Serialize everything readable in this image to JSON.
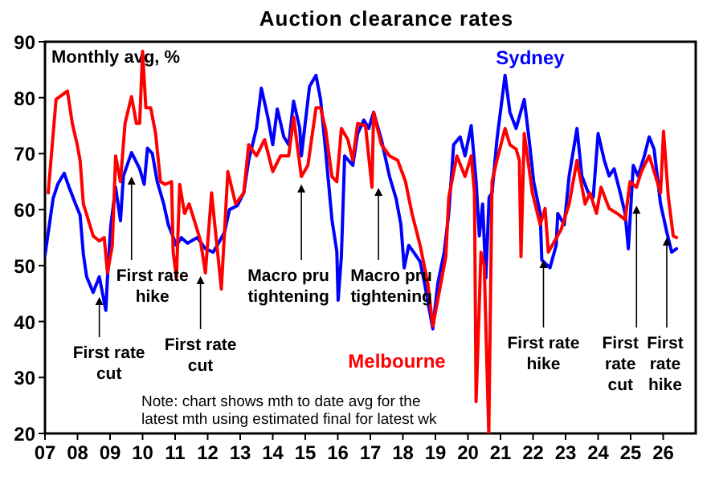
{
  "chart_data": {
    "type": "line",
    "title": "Auction clearance rates",
    "ylabel": "Monthly avg, %",
    "xlim": [
      2007,
      2027
    ],
    "ylim": [
      20,
      90
    ],
    "xticks": [
      {
        "value": 2007,
        "label": "07"
      },
      {
        "value": 2008,
        "label": "08"
      },
      {
        "value": 2009,
        "label": "09"
      },
      {
        "value": 2010,
        "label": "10"
      },
      {
        "value": 2011,
        "label": "11"
      },
      {
        "value": 2012,
        "label": "12"
      },
      {
        "value": 2013,
        "label": "13"
      },
      {
        "value": 2014,
        "label": "14"
      },
      {
        "value": 2015,
        "label": "15"
      },
      {
        "value": 2016,
        "label": "16"
      },
      {
        "value": 2017,
        "label": "17"
      },
      {
        "value": 2018,
        "label": "18"
      },
      {
        "value": 2019,
        "label": "19"
      },
      {
        "value": 2020,
        "label": "20"
      },
      {
        "value": 2021,
        "label": "21"
      },
      {
        "value": 2022,
        "label": "22"
      },
      {
        "value": 2023,
        "label": "23"
      },
      {
        "value": 2024,
        "label": "24"
      },
      {
        "value": 2025,
        "label": "25"
      },
      {
        "value": 2026,
        "label": "26"
      }
    ],
    "yticks": [
      20,
      30,
      40,
      50,
      60,
      70,
      80,
      90
    ],
    "grid": false,
    "series": [
      {
        "name": "Sydney",
        "color": "#0000ff",
        "x": [
          2007.0,
          2007.25,
          2007.39,
          2007.59,
          2007.74,
          2007.94,
          2008.08,
          2008.18,
          2008.28,
          2008.48,
          2008.67,
          2008.87,
          2008.92,
          2009.02,
          2009.17,
          2009.32,
          2009.41,
          2009.66,
          2009.91,
          2010.05,
          2010.15,
          2010.3,
          2010.45,
          2010.65,
          2010.79,
          2011.04,
          2011.19,
          2011.38,
          2011.68,
          2011.93,
          2012.17,
          2012.37,
          2012.52,
          2012.67,
          2012.91,
          2013.11,
          2013.26,
          2013.5,
          2013.65,
          2013.85,
          2014.0,
          2014.14,
          2014.34,
          2014.49,
          2014.64,
          2014.83,
          2014.88,
          2015.13,
          2015.33,
          2015.47,
          2015.62,
          2015.82,
          2015.97,
          2016.01,
          2016.11,
          2016.21,
          2016.46,
          2016.61,
          2016.8,
          2016.95,
          2017.1,
          2017.34,
          2017.59,
          2017.79,
          2017.94,
          2018.04,
          2018.18,
          2018.33,
          2018.53,
          2018.67,
          2018.92,
          2019.07,
          2019.27,
          2019.41,
          2019.56,
          2019.76,
          2019.91,
          2020.1,
          2020.25,
          2020.35,
          2020.45,
          2020.55,
          2020.65,
          2020.74,
          2020.89,
          2021.14,
          2021.29,
          2021.48,
          2021.73,
          2021.88,
          2022.02,
          2022.22,
          2022.27,
          2022.52,
          2022.71,
          2022.76,
          2022.96,
          2023.11,
          2023.35,
          2023.5,
          2023.7,
          2023.85,
          2024.0,
          2024.19,
          2024.34,
          2024.49,
          2024.68,
          2024.83,
          2024.93,
          2025.08,
          2025.23,
          2025.42,
          2025.57,
          2025.72,
          2025.92,
          2026.11,
          2026.26,
          2026.41
        ],
        "values": [
          51.8,
          62,
          64.5,
          66.5,
          64,
          61,
          59,
          52,
          48,
          45.2,
          48,
          42,
          47.8,
          57,
          64,
          58,
          66,
          70.2,
          67.3,
          64.5,
          71,
          70,
          65,
          61,
          57.3,
          53.6,
          55,
          54,
          55,
          53,
          52.4,
          54.4,
          56,
          60,
          60.7,
          63,
          68.8,
          74.5,
          81.7,
          76.5,
          71.6,
          78,
          73,
          71.6,
          79.4,
          74.5,
          69.6,
          82,
          84,
          79.7,
          70.8,
          58.2,
          52.5,
          43.8,
          51.6,
          69.6,
          67.9,
          73.6,
          76,
          74.5,
          77.4,
          72.5,
          65.9,
          62,
          57.3,
          49.6,
          53.6,
          52.4,
          50.7,
          46.7,
          38.7,
          46.7,
          52.4,
          59.3,
          71.6,
          73,
          69.6,
          75,
          65,
          55.3,
          61,
          47.8,
          62.2,
          63,
          72.5,
          84,
          77.4,
          74.5,
          79.7,
          72.5,
          65,
          59.3,
          51,
          49.6,
          53.6,
          59.3,
          57.3,
          66,
          74.5,
          66,
          63,
          62.2,
          73.6,
          68.8,
          66,
          67.3,
          63,
          59.3,
          53,
          67.9,
          66,
          69.6,
          73,
          70.8,
          61,
          56,
          52.4,
          53
        ]
      },
      {
        "name": "Melbourne",
        "color": "#ff0000",
        "x": [
          2007.1,
          2007.34,
          2007.69,
          2007.84,
          2007.99,
          2008.08,
          2008.18,
          2008.33,
          2008.48,
          2008.67,
          2008.82,
          2008.92,
          2009.07,
          2009.17,
          2009.32,
          2009.46,
          2009.66,
          2009.81,
          2009.91,
          2010.0,
          2010.1,
          2010.25,
          2010.4,
          2010.55,
          2010.69,
          2010.89,
          2010.94,
          2011.04,
          2011.14,
          2011.29,
          2011.43,
          2011.63,
          2011.78,
          2011.93,
          2012.12,
          2012.27,
          2012.42,
          2012.62,
          2012.86,
          2013.11,
          2013.26,
          2013.5,
          2013.75,
          2014.0,
          2014.24,
          2014.49,
          2014.64,
          2014.88,
          2015.08,
          2015.33,
          2015.47,
          2015.62,
          2015.82,
          2015.97,
          2016.11,
          2016.31,
          2016.46,
          2016.61,
          2016.85,
          2017.05,
          2017.1,
          2017.34,
          2017.59,
          2017.84,
          2018.08,
          2018.28,
          2018.53,
          2018.77,
          2018.92,
          2019.07,
          2019.32,
          2019.41,
          2019.66,
          2019.91,
          2020.1,
          2020.2,
          2020.25,
          2020.4,
          2020.5,
          2020.64,
          2020.74,
          2020.89,
          2021.14,
          2021.29,
          2021.48,
          2021.58,
          2021.63,
          2021.73,
          2021.98,
          2022.22,
          2022.37,
          2022.47,
          2022.86,
          2023.11,
          2023.35,
          2023.6,
          2023.75,
          2023.95,
          2024.09,
          2024.34,
          2024.59,
          2024.83,
          2024.98,
          2025.18,
          2025.33,
          2025.57,
          2025.72,
          2025.92,
          2026.01,
          2026.16,
          2026.31,
          2026.41
        ],
        "values": [
          63,
          79.7,
          81.2,
          75.4,
          71.6,
          68.8,
          61,
          58.2,
          55.3,
          54.4,
          55,
          48.7,
          53.6,
          69.6,
          65,
          75.4,
          80.2,
          75.4,
          75.4,
          88.3,
          78.2,
          78.2,
          73.6,
          65,
          64.5,
          65,
          52.4,
          47.8,
          64.5,
          59.3,
          61,
          57.3,
          54.4,
          48.7,
          63,
          54.4,
          45.8,
          66.8,
          61,
          63,
          71.6,
          69.6,
          72.5,
          66.8,
          69.6,
          69.6,
          76.5,
          65.9,
          67.9,
          78.2,
          78.2,
          74.5,
          65.9,
          65,
          74.5,
          72.5,
          68.8,
          75.4,
          75,
          64,
          77.4,
          71.6,
          69.6,
          68.8,
          65,
          59.3,
          53.6,
          46.7,
          39.2,
          43.8,
          51.6,
          62.2,
          69.6,
          65.9,
          69.6,
          63,
          25.7,
          52.4,
          50,
          20,
          65,
          68.8,
          74.5,
          71.6,
          70.8,
          68.8,
          51.6,
          73.6,
          63,
          57.3,
          60.2,
          52.4,
          56.4,
          61,
          68.8,
          61,
          63,
          59.3,
          64,
          60.2,
          59.3,
          58.2,
          65,
          64,
          66.8,
          69.6,
          66.8,
          63,
          74,
          62.2,
          55.3,
          55
        ]
      }
    ],
    "annotations": [
      {
        "text": "First rate cut",
        "x": 2008.67,
        "y": 44.4
      },
      {
        "text": "First rate hike",
        "x": 2009.66,
        "y": 65.9
      },
      {
        "text": "First rate cut",
        "x": 2011.78,
        "y": 48.1
      },
      {
        "text": "Macro pru tightening",
        "x": 2014.88,
        "y": 64.5
      },
      {
        "text": "Macro pru tightening",
        "x": 2017.25,
        "y": 63.9
      },
      {
        "text": "First rate hike",
        "x": 2022.32,
        "y": 51
      },
      {
        "text": "First rate cut",
        "x": 2025.18,
        "y": 60.7
      },
      {
        "text": "First rate hike",
        "x": 2026.11,
        "y": 55
      },
      "Note: chart shows mth to date avg for the latest mth using estimated final for latest wk"
    ]
  }
}
